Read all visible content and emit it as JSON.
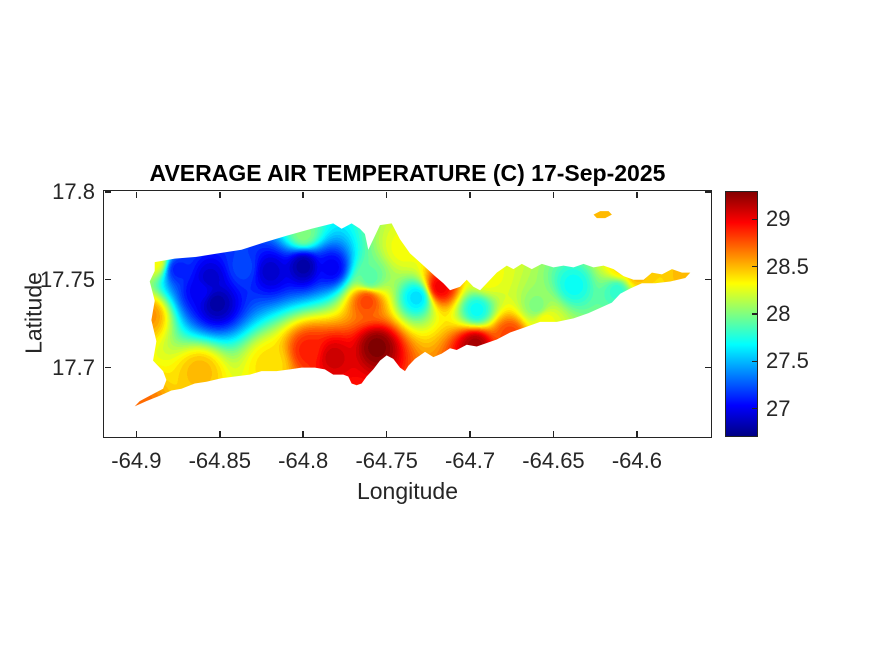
{
  "figure": {
    "background": "#ffffff",
    "axis_color": "#262626",
    "title_color": "#000000"
  },
  "chart_data": {
    "type": "heatmap",
    "subtype": "filled-contour-map",
    "title": "AVERAGE AIR TEMPERATURE (C) 17-Sep-2025",
    "xlabel": "Longitude",
    "ylabel": "Latitude",
    "xlim": [
      -64.92,
      -64.555
    ],
    "ylim": [
      17.66,
      17.801
    ],
    "xticks": [
      -64.9,
      -64.85,
      -64.8,
      -64.75,
      -64.7,
      -64.65,
      -64.6
    ],
    "xtick_labels": [
      "-64.9",
      "-64.85",
      "-64.8",
      "-64.75",
      "-64.7",
      "-64.65",
      "-64.6"
    ],
    "yticks": [
      17.7,
      17.75,
      17.8
    ],
    "ytick_labels": [
      "17.7",
      "17.75",
      "17.8"
    ],
    "grid": false,
    "contour_step_c": 0.05,
    "colorbar": {
      "position": "right",
      "range": [
        26.7,
        29.3
      ],
      "ticks": [
        27,
        27.5,
        28,
        28.5,
        29
      ],
      "tick_labels": [
        "27",
        "27.5",
        "28",
        "28.5",
        "29"
      ],
      "colormap": "jet",
      "colormap_stops": [
        {
          "at": 0.0,
          "color": "#000084"
        },
        {
          "at": 0.125,
          "color": "#0000ff"
        },
        {
          "at": 0.375,
          "color": "#00ffff"
        },
        {
          "at": 0.625,
          "color": "#ffff00"
        },
        {
          "at": 0.875,
          "color": "#ff0000"
        },
        {
          "at": 1.0,
          "color": "#840000"
        }
      ]
    },
    "island_outline": [
      [
        -64.889,
        17.76
      ],
      [
        -64.877,
        17.762
      ],
      [
        -64.864,
        17.763
      ],
      [
        -64.851,
        17.765
      ],
      [
        -64.837,
        17.767
      ],
      [
        -64.824,
        17.771
      ],
      [
        -64.81,
        17.775
      ],
      [
        -64.795,
        17.779
      ],
      [
        -64.782,
        17.782
      ],
      [
        -64.777,
        17.779
      ],
      [
        -64.771,
        17.782
      ],
      [
        -64.766,
        17.779
      ],
      [
        -64.763,
        17.776
      ],
      [
        -64.761,
        17.767
      ],
      [
        -64.757,
        17.775
      ],
      [
        -64.754,
        17.781
      ],
      [
        -64.747,
        17.782
      ],
      [
        -64.742,
        17.773
      ],
      [
        -64.736,
        17.765
      ],
      [
        -64.729,
        17.759
      ],
      [
        -64.721,
        17.752
      ],
      [
        -64.716,
        17.748
      ],
      [
        -64.712,
        17.744
      ],
      [
        -64.706,
        17.746
      ],
      [
        -64.702,
        17.75
      ],
      [
        -64.698,
        17.746
      ],
      [
        -64.694,
        17.744
      ],
      [
        -64.69,
        17.748
      ],
      [
        -64.684,
        17.754
      ],
      [
        -64.678,
        17.758
      ],
      [
        -64.674,
        17.756
      ],
      [
        -64.669,
        17.759
      ],
      [
        -64.663,
        17.756
      ],
      [
        -64.657,
        17.759
      ],
      [
        -64.65,
        17.757
      ],
      [
        -64.644,
        17.758
      ],
      [
        -64.638,
        17.757
      ],
      [
        -64.632,
        17.759
      ],
      [
        -64.626,
        17.757
      ],
      [
        -64.62,
        17.758
      ],
      [
        -64.614,
        17.756
      ],
      [
        -64.608,
        17.752
      ],
      [
        -64.602,
        17.75
      ],
      [
        -64.596,
        17.75
      ],
      [
        -64.591,
        17.754
      ],
      [
        -64.585,
        17.753
      ],
      [
        -64.579,
        17.756
      ],
      [
        -64.573,
        17.754
      ],
      [
        -64.568,
        17.754
      ],
      [
        -64.571,
        17.751
      ],
      [
        -64.58,
        17.749
      ],
      [
        -64.589,
        17.748
      ],
      [
        -64.597,
        17.748
      ],
      [
        -64.604,
        17.745
      ],
      [
        -64.61,
        17.742
      ],
      [
        -64.615,
        17.737
      ],
      [
        -64.622,
        17.734
      ],
      [
        -64.629,
        17.731
      ],
      [
        -64.638,
        17.728
      ],
      [
        -64.648,
        17.726
      ],
      [
        -64.658,
        17.726
      ],
      [
        -64.667,
        17.723
      ],
      [
        -64.676,
        17.72
      ],
      [
        -64.684,
        17.716
      ],
      [
        -64.69,
        17.714
      ],
      [
        -64.696,
        17.712
      ],
      [
        -64.702,
        17.713
      ],
      [
        -64.708,
        17.71
      ],
      [
        -64.712,
        17.711
      ],
      [
        -64.717,
        17.708
      ],
      [
        -64.722,
        17.706
      ],
      [
        -64.727,
        17.709
      ],
      [
        -64.733,
        17.705
      ],
      [
        -64.737,
        17.701
      ],
      [
        -64.739,
        17.698
      ],
      [
        -64.742,
        17.7
      ],
      [
        -64.746,
        17.705
      ],
      [
        -64.75,
        17.707
      ],
      [
        -64.754,
        17.704
      ],
      [
        -64.758,
        17.699
      ],
      [
        -64.762,
        17.695
      ],
      [
        -64.765,
        17.691
      ],
      [
        -64.768,
        17.69
      ],
      [
        -64.771,
        17.691
      ],
      [
        -64.773,
        17.695
      ],
      [
        -64.776,
        17.696
      ],
      [
        -64.782,
        17.696
      ],
      [
        -64.787,
        17.699
      ],
      [
        -64.793,
        17.7
      ],
      [
        -64.801,
        17.7
      ],
      [
        -64.808,
        17.699
      ],
      [
        -64.816,
        17.698
      ],
      [
        -64.825,
        17.698
      ],
      [
        -64.832,
        17.696
      ],
      [
        -64.841,
        17.695
      ],
      [
        -64.849,
        17.694
      ],
      [
        -64.858,
        17.692
      ],
      [
        -64.865,
        17.691
      ],
      [
        -64.873,
        17.688
      ],
      [
        -64.879,
        17.687
      ],
      [
        -64.886,
        17.684
      ],
      [
        -64.894,
        17.681
      ],
      [
        -64.901,
        17.678
      ],
      [
        -64.898,
        17.681
      ],
      [
        -64.89,
        17.685
      ],
      [
        -64.884,
        17.688
      ],
      [
        -64.882,
        17.693
      ],
      [
        -64.884,
        17.698
      ],
      [
        -64.89,
        17.704
      ],
      [
        -64.888,
        17.715
      ],
      [
        -64.891,
        17.727
      ],
      [
        -64.889,
        17.738
      ],
      [
        -64.892,
        17.749
      ],
      [
        -64.889,
        17.755
      ]
    ],
    "buck_island_outline": [
      [
        -64.626,
        17.787
      ],
      [
        -64.622,
        17.789
      ],
      [
        -64.617,
        17.789
      ],
      [
        -64.615,
        17.787
      ],
      [
        -64.619,
        17.785
      ],
      [
        -64.624,
        17.785
      ]
    ],
    "station_format": [
      "lon",
      "lat",
      "temp_c"
    ],
    "temperature_stations": [
      [
        -64.875,
        17.756,
        27.1
      ],
      [
        -64.856,
        17.751,
        26.9
      ],
      [
        -64.852,
        17.737,
        26.8
      ],
      [
        -64.862,
        17.744,
        27.0
      ],
      [
        -64.82,
        17.755,
        26.9
      ],
      [
        -64.8,
        17.758,
        26.8
      ],
      [
        -64.783,
        17.757,
        27.0
      ],
      [
        -64.836,
        17.757,
        27.2
      ],
      [
        -64.76,
        17.751,
        27.9
      ],
      [
        -64.732,
        17.74,
        27.6
      ],
      [
        -64.696,
        17.733,
        27.7
      ],
      [
        -64.638,
        17.747,
        27.7
      ],
      [
        -64.612,
        17.744,
        27.8
      ],
      [
        -64.66,
        17.735,
        28.0
      ],
      [
        -64.782,
        17.706,
        29.1
      ],
      [
        -64.756,
        17.712,
        29.3
      ],
      [
        -64.697,
        17.713,
        29.2
      ],
      [
        -64.718,
        17.746,
        29.0
      ],
      [
        -64.676,
        17.719,
        28.8
      ],
      [
        -64.762,
        17.738,
        28.8
      ],
      [
        -64.797,
        17.71,
        28.9
      ],
      [
        -64.889,
        17.76,
        28.3
      ],
      [
        -64.893,
        17.73,
        28.6
      ],
      [
        -64.899,
        17.679,
        28.7
      ],
      [
        -64.862,
        17.698,
        28.5
      ],
      [
        -64.82,
        17.702,
        28.4
      ],
      [
        -64.6,
        17.753,
        28.5
      ],
      [
        -64.568,
        17.753,
        28.5
      ],
      [
        -64.655,
        17.727,
        28.3
      ],
      [
        -64.69,
        17.751,
        28.3
      ],
      [
        -64.8,
        17.776,
        28.0
      ],
      [
        -64.74,
        17.768,
        28.3
      ],
      [
        -64.61,
        17.757,
        28.4
      ],
      [
        -64.62,
        17.787,
        28.5
      ]
    ]
  }
}
